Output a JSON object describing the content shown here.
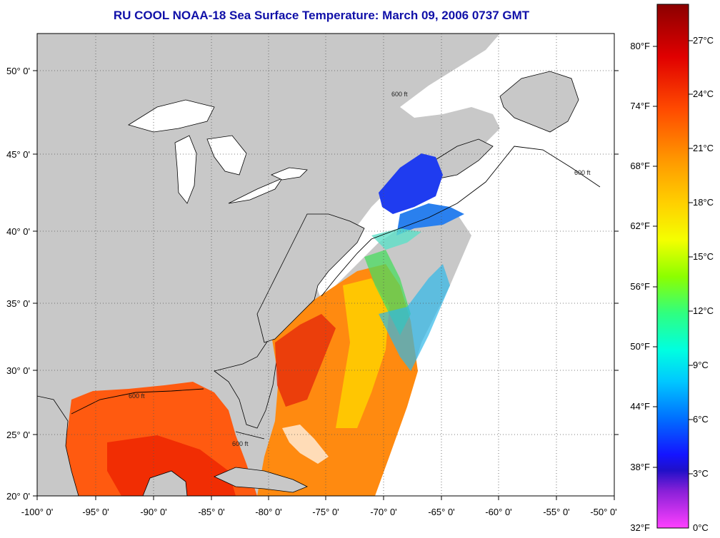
{
  "title": "RU COOL  NOAA-18  Sea Surface Temperature:  March 09, 2006 0737 GMT",
  "map": {
    "lon_range": [
      -100,
      -50
    ],
    "lat_range": [
      20,
      52.5
    ],
    "x_ticks": [
      "-100° 0'",
      "-95° 0'",
      "-90° 0'",
      "-85° 0'",
      "-80° 0'",
      "-75° 0'",
      "-70° 0'",
      "-65° 0'",
      "-60° 0'",
      "-55° 0'",
      "-50° 0'"
    ],
    "y_ticks": [
      "50° 0'",
      "45° 0'",
      "40° 0'",
      "35° 0'",
      "30° 0'",
      "25° 0'",
      "20° 0'"
    ],
    "contour_label": "600 ft",
    "grid": true,
    "colors": {
      "land": "#c8c8c8",
      "no_data": "#ffffff",
      "coastline": "#000000"
    }
  },
  "colorbar": {
    "fahrenheit_labels": [
      "80°F",
      "74°F",
      "68°F",
      "62°F",
      "56°F",
      "50°F",
      "44°F",
      "38°F",
      "32°F"
    ],
    "celsius_labels": [
      "27°C",
      "24°C",
      "21°C",
      "18°C",
      "15°C",
      "12°C",
      "9°C",
      "6°C",
      "3°C",
      "0°C"
    ],
    "gradient_stops": [
      "#8b0000",
      "#e00000",
      "#ff4a00",
      "#ff9a00",
      "#ffd000",
      "#f4ff00",
      "#8cff00",
      "#2fff80",
      "#00ffe0",
      "#00c8ff",
      "#0070ff",
      "#1414ff",
      "#2010c8",
      "#8a20d8",
      "#ff40ff"
    ]
  }
}
